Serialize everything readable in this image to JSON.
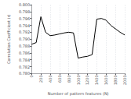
{
  "chart_data": {
    "type": "line",
    "x": [
      0,
      100,
      200,
      300,
      400,
      500,
      600,
      700,
      800,
      900,
      1000,
      1100,
      1200,
      1300,
      1400,
      1500,
      1600,
      1700,
      1800,
      1900,
      2000
    ],
    "values": [
      0.7885,
      0.789,
      0.7965,
      0.792,
      0.791,
      0.7912,
      0.7915,
      0.7918,
      0.792,
      0.7918,
      0.7845,
      0.7848,
      0.785,
      0.7855,
      0.7958,
      0.796,
      0.7955,
      0.794,
      0.793,
      0.792,
      0.7912
    ],
    "color": "#000000",
    "xlabel": "Number of pattern features (N)",
    "ylabel": "Correlation Coefficient (r)",
    "xlim": [
      0,
      2000
    ],
    "ylim": [
      0.78,
      0.8
    ],
    "xticks": [
      0,
      200,
      400,
      600,
      800,
      1000,
      1200,
      1400,
      1600,
      1800,
      2000
    ],
    "yticks": [
      {
        "value": 0.78,
        "label": "0.780"
      },
      {
        "value": 0.782,
        "label": "0.782"
      },
      {
        "value": 0.784,
        "label": "0.784"
      },
      {
        "value": 0.786,
        "label": "0.786"
      },
      {
        "value": 0.788,
        "label": "0.788"
      },
      {
        "value": 0.79,
        "label": "0.790"
      },
      {
        "value": 0.792,
        "label": "0.792"
      },
      {
        "value": 0.794,
        "label": "0.794"
      },
      {
        "value": 0.796,
        "label": "0.796"
      },
      {
        "value": 0.798,
        "label": "0.798"
      },
      {
        "value": 0.8,
        "label": "0.800"
      }
    ],
    "grid": "x"
  }
}
